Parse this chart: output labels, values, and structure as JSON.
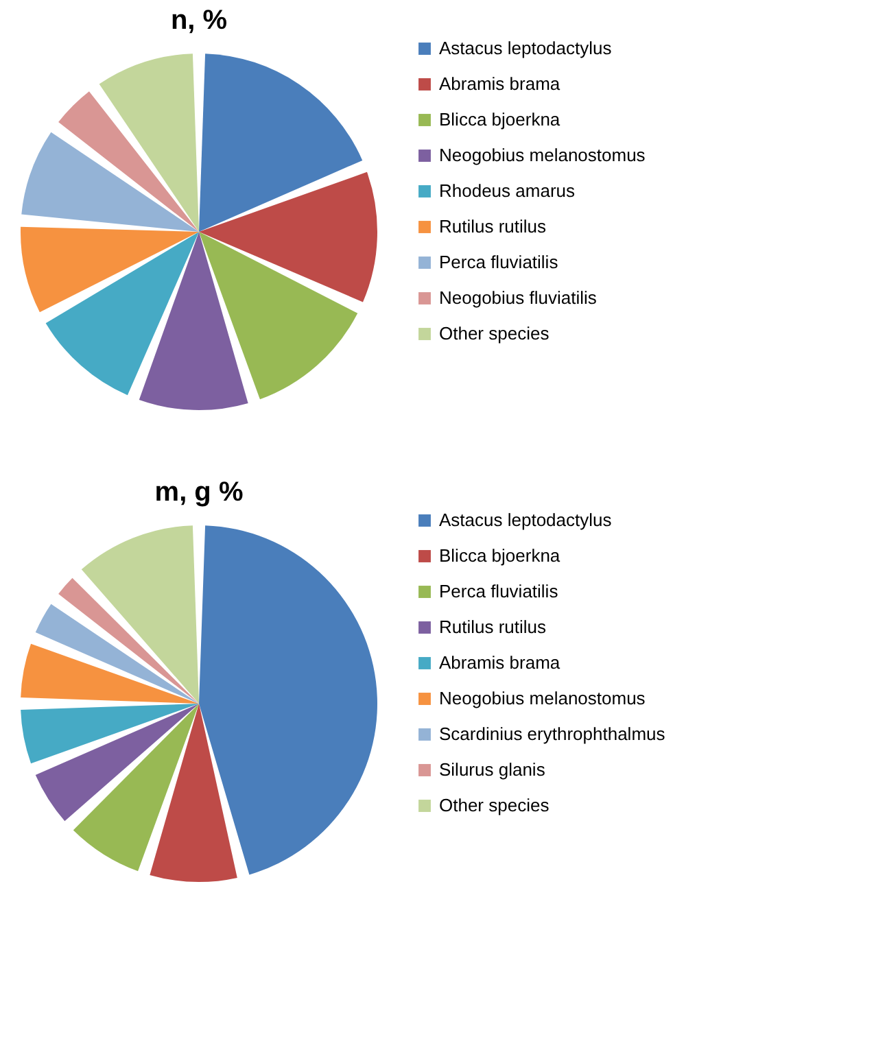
{
  "chart_data": [
    {
      "type": "pie",
      "title": "n, %",
      "legend": "right",
      "categories": [
        "Astacus leptodactylus",
        "Abramis brama",
        "Blicca bjoerkna",
        "Neogobius melanostomus",
        "Rhodeus amarus",
        "Rutilus rutilus",
        "Perca fluviatilis",
        "Neogobius fluviatilis",
        "Other species"
      ],
      "values": [
        19,
        13,
        13,
        11,
        11,
        9,
        9,
        5,
        10
      ],
      "colors": [
        "#4a7ebb",
        "#be4b48",
        "#98b954",
        "#7d60a0",
        "#46aac5",
        "#f69240",
        "#94b3d6",
        "#d99694",
        "#c3d69b"
      ]
    },
    {
      "type": "pie",
      "title": "m, g %",
      "legend": "right",
      "categories": [
        "Astacus leptodactylus",
        "Blicca bjoerkna",
        "Perca fluviatilis",
        "Rutilus rutilus",
        "Abramis brama",
        "Neogobius melanostomus",
        "Scardinius erythrophthalmus",
        "Silurus glanis",
        "Other species"
      ],
      "values": [
        46,
        9,
        8,
        6,
        6,
        6,
        4,
        3,
        12
      ],
      "colors": [
        "#4a7ebb",
        "#be4b48",
        "#98b954",
        "#7d60a0",
        "#46aac5",
        "#f69240",
        "#94b3d6",
        "#d99694",
        "#c3d69b"
      ]
    }
  ]
}
